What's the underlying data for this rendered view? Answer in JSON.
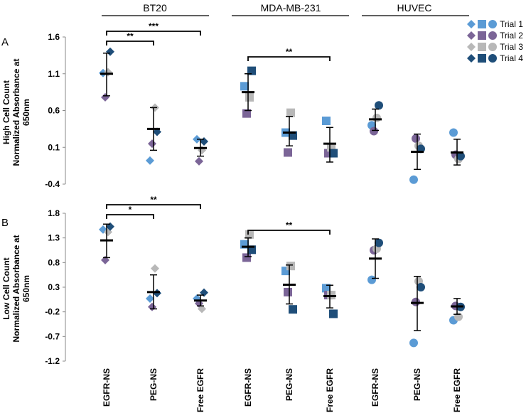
{
  "groups": [
    "BT20",
    "MDA-MB-231",
    "HUVEC"
  ],
  "categories": [
    "EGFR-NS",
    "PEG-NS",
    "Free EGFR"
  ],
  "colors": {
    "Trial 1": "#5b9bd5",
    "Trial 2": "#7b6597",
    "Trial 3": "#b8b8b8",
    "Trial 4": "#1f4e79"
  },
  "legend": {
    "entries": [
      "Trial 1",
      "Trial 2",
      "Trial 3",
      "Trial 4"
    ],
    "shapes": [
      "diamond",
      "square",
      "circle"
    ]
  },
  "chart_data": [
    {
      "type": "scatter",
      "panel": "A",
      "ylabel_line1": "High Cell Count",
      "ylabel_line2": "Normalized Absorbance at",
      "ylabel_line3": "650nm",
      "ylim": [
        -0.4,
        1.6
      ],
      "yticks": [
        "1.6",
        "1.1",
        "0.6",
        "0.1",
        "-0.4"
      ],
      "ytick_values": [
        1.6,
        1.1,
        0.6,
        0.1,
        -0.4
      ],
      "series": [
        {
          "group": "BT20",
          "category": "EGFR-NS",
          "shape": "diamond",
          "mean": 1.1,
          "err_low": 0.8,
          "err_high": 1.38,
          "points": [
            {
              "trial": "Trial 1",
              "value": 1.11
            },
            {
              "trial": "Trial 2",
              "value": 0.78
            },
            {
              "trial": "Trial 3",
              "value": 1.12
            },
            {
              "trial": "Trial 4",
              "value": 1.4
            }
          ]
        },
        {
          "group": "BT20",
          "category": "PEG-NS",
          "shape": "diamond",
          "mean": 0.35,
          "err_low": 0.06,
          "err_high": 0.64,
          "points": [
            {
              "trial": "Trial 1",
              "value": -0.08
            },
            {
              "trial": "Trial 2",
              "value": 0.15
            },
            {
              "trial": "Trial 3",
              "value": 0.64
            },
            {
              "trial": "Trial 4",
              "value": 0.31
            }
          ]
        },
        {
          "group": "BT20",
          "category": "Free EGFR",
          "shape": "diamond",
          "mean": 0.09,
          "err_low": -0.02,
          "err_high": 0.21,
          "points": [
            {
              "trial": "Trial 1",
              "value": 0.21
            },
            {
              "trial": "Trial 2",
              "value": -0.09
            },
            {
              "trial": "Trial 3",
              "value": 0.06
            },
            {
              "trial": "Trial 4",
              "value": 0.18
            }
          ]
        },
        {
          "group": "MDA-MB-231",
          "category": "EGFR-NS",
          "shape": "square",
          "mean": 0.85,
          "err_low": 0.6,
          "err_high": 1.1,
          "points": [
            {
              "trial": "Trial 1",
              "value": 0.93
            },
            {
              "trial": "Trial 2",
              "value": 0.56
            },
            {
              "trial": "Trial 3",
              "value": 0.78
            },
            {
              "trial": "Trial 4",
              "value": 1.14
            }
          ]
        },
        {
          "group": "MDA-MB-231",
          "category": "PEG-NS",
          "shape": "square",
          "mean": 0.3,
          "err_low": 0.12,
          "err_high": 0.52,
          "points": [
            {
              "trial": "Trial 1",
              "value": 0.3
            },
            {
              "trial": "Trial 2",
              "value": 0.03
            },
            {
              "trial": "Trial 3",
              "value": 0.57
            },
            {
              "trial": "Trial 4",
              "value": 0.26
            }
          ]
        },
        {
          "group": "MDA-MB-231",
          "category": "Free EGFR",
          "shape": "square",
          "mean": 0.15,
          "err_low": -0.1,
          "err_high": 0.37,
          "points": [
            {
              "trial": "Trial 1",
              "value": 0.46
            },
            {
              "trial": "Trial 2",
              "value": 0.02
            },
            {
              "trial": "Trial 3",
              "value": 0.1
            },
            {
              "trial": "Trial 4",
              "value": 0.02
            }
          ]
        },
        {
          "group": "HUVEC",
          "category": "EGFR-NS",
          "shape": "circle",
          "mean": 0.48,
          "err_low": 0.33,
          "err_high": 0.62,
          "points": [
            {
              "trial": "Trial 1",
              "value": 0.4
            },
            {
              "trial": "Trial 2",
              "value": 0.32
            },
            {
              "trial": "Trial 3",
              "value": 0.5
            },
            {
              "trial": "Trial 4",
              "value": 0.67
            }
          ]
        },
        {
          "group": "HUVEC",
          "category": "PEG-NS",
          "shape": "circle",
          "mean": 0.04,
          "err_low": -0.2,
          "err_high": 0.28,
          "points": [
            {
              "trial": "Trial 1",
              "value": -0.34
            },
            {
              "trial": "Trial 2",
              "value": 0.22
            },
            {
              "trial": "Trial 3",
              "value": 0.12
            },
            {
              "trial": "Trial 4",
              "value": 0.08
            }
          ]
        },
        {
          "group": "HUVEC",
          "category": "Free EGFR",
          "shape": "circle",
          "mean": 0.03,
          "err_low": -0.14,
          "err_high": 0.21,
          "points": [
            {
              "trial": "Trial 1",
              "value": 0.3
            },
            {
              "trial": "Trial 2",
              "value": 0.0
            },
            {
              "trial": "Trial 3",
              "value": -0.06
            },
            {
              "trial": "Trial 4",
              "value": -0.02
            }
          ]
        }
      ],
      "significance": [
        {
          "from_group": "BT20",
          "from_category": "EGFR-NS",
          "to_group": "BT20",
          "to_category": "PEG-NS",
          "label": "**",
          "level": 1
        },
        {
          "from_group": "BT20",
          "from_category": "EGFR-NS",
          "to_group": "BT20",
          "to_category": "Free EGFR",
          "label": "***",
          "level": 2
        },
        {
          "from_group": "MDA-MB-231",
          "from_category": "EGFR-NS",
          "to_group": "MDA-MB-231",
          "to_category": "Free EGFR",
          "label": "**",
          "level": 1
        }
      ]
    },
    {
      "type": "scatter",
      "panel": "B",
      "ylabel_line1": "Low Cell Count",
      "ylabel_line2": "Normalized Absorbance at",
      "ylabel_line3": "650nm",
      "ylim": [
        -1.2,
        1.8
      ],
      "yticks": [
        "1.8",
        "1.3",
        "0.8",
        "0.3",
        "-0.2",
        "-0.7",
        "-1.2"
      ],
      "ytick_values": [
        1.8,
        1.3,
        0.8,
        0.3,
        -0.2,
        -0.7,
        -1.2
      ],
      "series": [
        {
          "group": "BT20",
          "category": "EGFR-NS",
          "shape": "diamond",
          "mean": 1.25,
          "err_low": 0.9,
          "err_high": 1.58,
          "points": [
            {
              "trial": "Trial 1",
              "value": 1.47
            },
            {
              "trial": "Trial 2",
              "value": 0.85
            },
            {
              "trial": "Trial 3",
              "value": 1.42
            },
            {
              "trial": "Trial 4",
              "value": 1.53
            }
          ]
        },
        {
          "group": "BT20",
          "category": "PEG-NS",
          "shape": "diamond",
          "mean": 0.2,
          "err_low": -0.14,
          "err_high": 0.55,
          "points": [
            {
              "trial": "Trial 1",
              "value": 0.07
            },
            {
              "trial": "Trial 2",
              "value": -0.1
            },
            {
              "trial": "Trial 3",
              "value": 0.68
            },
            {
              "trial": "Trial 4",
              "value": 0.18
            }
          ]
        },
        {
          "group": "BT20",
          "category": "Free EGFR",
          "shape": "diamond",
          "mean": 0.03,
          "err_low": -0.08,
          "err_high": 0.14,
          "points": [
            {
              "trial": "Trial 1",
              "value": 0.07
            },
            {
              "trial": "Trial 2",
              "value": -0.03
            },
            {
              "trial": "Trial 3",
              "value": -0.14
            },
            {
              "trial": "Trial 4",
              "value": 0.19
            }
          ]
        },
        {
          "group": "MDA-MB-231",
          "category": "EGFR-NS",
          "shape": "square",
          "mean": 1.12,
          "err_low": 0.92,
          "err_high": 1.3,
          "points": [
            {
              "trial": "Trial 1",
              "value": 1.17
            },
            {
              "trial": "Trial 2",
              "value": 0.9
            },
            {
              "trial": "Trial 3",
              "value": 1.37
            },
            {
              "trial": "Trial 4",
              "value": 1.06
            }
          ]
        },
        {
          "group": "MDA-MB-231",
          "category": "PEG-NS",
          "shape": "square",
          "mean": 0.35,
          "err_low": -0.04,
          "err_high": 0.75,
          "points": [
            {
              "trial": "Trial 1",
              "value": 0.63
            },
            {
              "trial": "Trial 2",
              "value": 0.2
            },
            {
              "trial": "Trial 3",
              "value": 0.73
            },
            {
              "trial": "Trial 4",
              "value": -0.15
            }
          ]
        },
        {
          "group": "MDA-MB-231",
          "category": "Free EGFR",
          "shape": "square",
          "mean": 0.12,
          "err_low": -0.12,
          "err_high": 0.34,
          "points": [
            {
              "trial": "Trial 1",
              "value": 0.28
            },
            {
              "trial": "Trial 2",
              "value": 0.14
            },
            {
              "trial": "Trial 3",
              "value": 0.14
            },
            {
              "trial": "Trial 4",
              "value": -0.24
            }
          ]
        },
        {
          "group": "HUVEC",
          "category": "EGFR-NS",
          "shape": "circle",
          "mean": 0.88,
          "err_low": 0.48,
          "err_high": 1.28,
          "points": [
            {
              "trial": "Trial 1",
              "value": 0.45
            },
            {
              "trial": "Trial 2",
              "value": 1.05
            },
            {
              "trial": "Trial 3",
              "value": 1.08
            },
            {
              "trial": "Trial 4",
              "value": 1.2
            }
          ]
        },
        {
          "group": "HUVEC",
          "category": "PEG-NS",
          "shape": "circle",
          "mean": -0.02,
          "err_low": -0.58,
          "err_high": 0.52,
          "points": [
            {
              "trial": "Trial 1",
              "value": -0.83
            },
            {
              "trial": "Trial 2",
              "value": 0.0
            },
            {
              "trial": "Trial 3",
              "value": 0.42
            },
            {
              "trial": "Trial 4",
              "value": 0.3
            }
          ]
        },
        {
          "group": "HUVEC",
          "category": "Free EGFR",
          "shape": "circle",
          "mean": -0.09,
          "err_low": -0.25,
          "err_high": 0.07,
          "points": [
            {
              "trial": "Trial 1",
              "value": -0.37
            },
            {
              "trial": "Trial 2",
              "value": -0.08
            },
            {
              "trial": "Trial 3",
              "value": -0.3
            },
            {
              "trial": "Trial 4",
              "value": -0.1
            }
          ]
        }
      ],
      "significance": [
        {
          "from_group": "BT20",
          "from_category": "EGFR-NS",
          "to_group": "BT20",
          "to_category": "PEG-NS",
          "label": "*",
          "level": 1
        },
        {
          "from_group": "BT20",
          "from_category": "EGFR-NS",
          "to_group": "BT20",
          "to_category": "Free EGFR",
          "label": "**",
          "level": 2
        },
        {
          "from_group": "MDA-MB-231",
          "from_category": "EGFR-NS",
          "to_group": "MDA-MB-231",
          "to_category": "Free EGFR",
          "label": "**",
          "level": 1
        }
      ]
    }
  ]
}
